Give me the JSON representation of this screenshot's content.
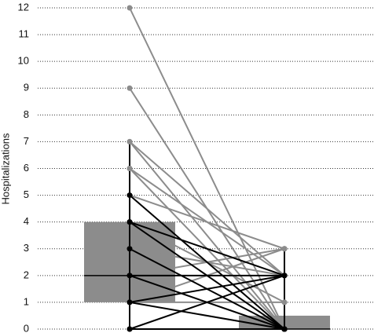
{
  "chart_data": {
    "type": "slopegraph",
    "y_label": "Hospitalizations",
    "ylim": [
      0,
      12
    ],
    "yticks": [
      0,
      1,
      2,
      3,
      4,
      5,
      6,
      7,
      8,
      9,
      10,
      11,
      12
    ],
    "grid": true,
    "boxes": [
      {
        "q1": 1,
        "median": 2,
        "q3": 4,
        "low": 0,
        "high": 7,
        "color": "#8c8c8c"
      },
      {
        "q1": 0,
        "median": 0,
        "q3": 0.5,
        "low": 0,
        "high": 3,
        "color": "#8c8c8c"
      }
    ],
    "before": [
      12,
      9,
      7,
      7,
      6,
      6,
      5,
      4,
      3,
      2,
      1,
      1,
      5,
      4,
      4,
      3,
      2,
      2,
      1,
      1,
      0,
      0
    ],
    "after": [
      0,
      0,
      0,
      2,
      0,
      2,
      3,
      1,
      2,
      3,
      3,
      1,
      0,
      0,
      2,
      0,
      0,
      2,
      0,
      2,
      0,
      2
    ],
    "colors": [
      "#8c8c8c",
      "#8c8c8c",
      "#8c8c8c",
      "#8c8c8c",
      "#8c8c8c",
      "#8c8c8c",
      "#8c8c8c",
      "#8c8c8c",
      "#8c8c8c",
      "#8c8c8c",
      "#8c8c8c",
      "#8c8c8c",
      "#000000",
      "#000000",
      "#000000",
      "#000000",
      "#000000",
      "#000000",
      "#000000",
      "#000000",
      "#000000",
      "#000000"
    ]
  }
}
